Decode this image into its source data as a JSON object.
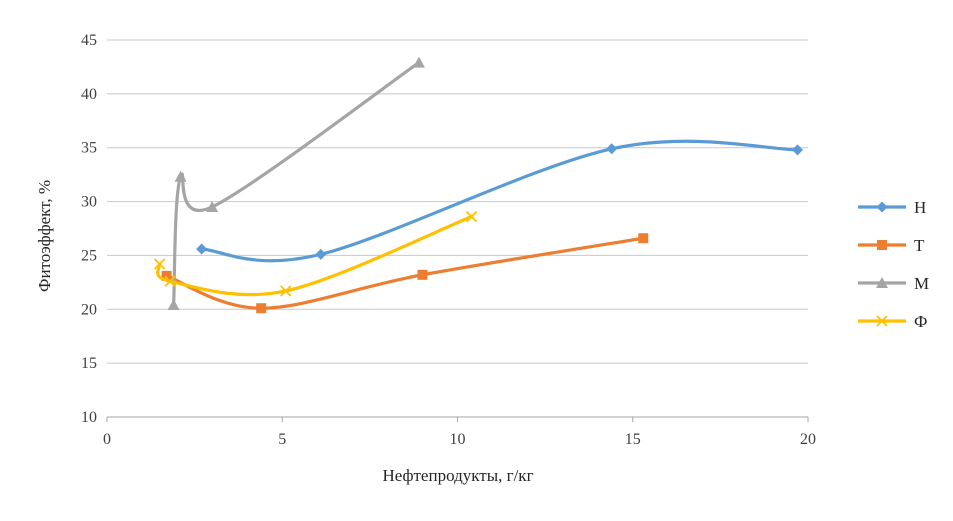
{
  "chart_data": {
    "type": "scatter",
    "xlabel": "Нефтепродукты, г/кг",
    "ylabel": "Фитоэффект, %",
    "xlim": [
      0,
      20
    ],
    "ylim": [
      10,
      45
    ],
    "x_ticks": [
      "0",
      "5",
      "10",
      "15",
      "20"
    ],
    "y_ticks": [
      "10",
      "15",
      "20",
      "25",
      "30",
      "35",
      "40",
      "45"
    ],
    "grid": "horizontal",
    "legend_position": "right",
    "smoothed_lines": true,
    "series": [
      {
        "name": "Н",
        "color": "#5b9bd5",
        "marker": "diamond",
        "points": [
          [
            2.7,
            25.6
          ],
          [
            6.1,
            25.1
          ],
          [
            14.4,
            34.9
          ],
          [
            19.7,
            34.8
          ]
        ]
      },
      {
        "name": "Т",
        "color": "#ed7d31",
        "marker": "square",
        "points": [
          [
            1.7,
            23.1
          ],
          [
            4.4,
            20.1
          ],
          [
            9.0,
            23.2
          ],
          [
            15.3,
            26.6
          ]
        ]
      },
      {
        "name": "М",
        "color": "#a5a5a5",
        "marker": "triangle",
        "points": [
          [
            1.9,
            20.4
          ],
          [
            2.1,
            32.3
          ],
          [
            3.0,
            29.5
          ],
          [
            8.9,
            42.9
          ]
        ]
      },
      {
        "name": "Ф",
        "color": "#ffc000",
        "marker": "x",
        "points": [
          [
            1.5,
            24.2
          ],
          [
            1.8,
            22.6
          ],
          [
            5.1,
            21.7
          ],
          [
            10.4,
            28.6
          ]
        ]
      }
    ]
  }
}
